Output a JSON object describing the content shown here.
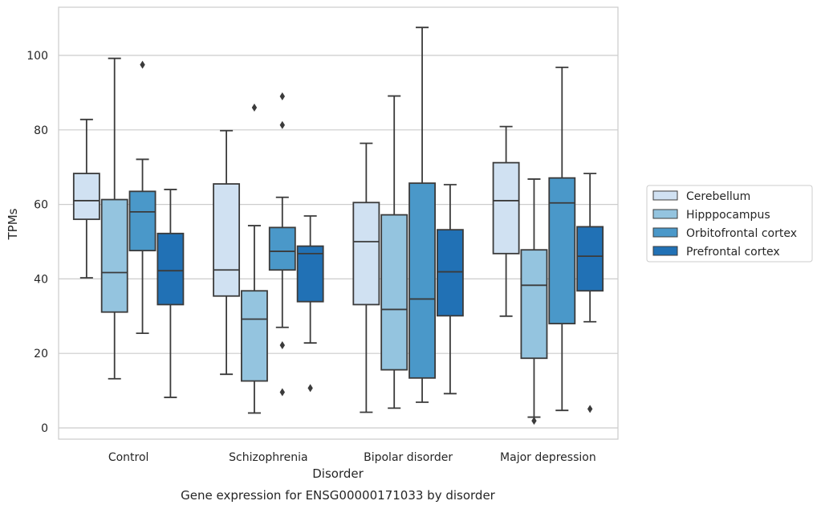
{
  "chart_data": {
    "type": "box",
    "title": "Gene expression for ENSG00000171033 by disorder",
    "xlabel": "Disorder",
    "ylabel": "TPMs",
    "ylim": [
      -3,
      113
    ],
    "yticks": [
      0,
      20,
      40,
      60,
      80,
      100
    ],
    "grid": "horizontal",
    "legend_position": "right",
    "categories": [
      "Control",
      "Schizophrenia",
      "Bipolar disorder",
      "Major depression"
    ],
    "series": [
      {
        "name": "Cerebellum",
        "color": "#d0e1f2",
        "boxes": [
          {
            "min": 40.3,
            "q1": 56.0,
            "median": 61.0,
            "q3": 68.3,
            "max": 82.8,
            "outliers": []
          },
          {
            "min": 14.4,
            "q1": 35.4,
            "median": 42.4,
            "q3": 65.5,
            "max": 79.8,
            "outliers": []
          },
          {
            "min": 4.2,
            "q1": 33.1,
            "median": 50.0,
            "q3": 60.5,
            "max": 76.4,
            "outliers": []
          },
          {
            "min": 30.0,
            "q1": 46.8,
            "median": 61.0,
            "q3": 71.2,
            "max": 80.9,
            "outliers": []
          }
        ]
      },
      {
        "name": "Hipppocampus",
        "color": "#94c4df",
        "boxes": [
          {
            "min": 13.2,
            "q1": 31.1,
            "median": 41.7,
            "q3": 61.3,
            "max": 99.2,
            "outliers": []
          },
          {
            "min": 4.0,
            "q1": 12.6,
            "median": 29.2,
            "q3": 36.8,
            "max": 54.3,
            "outliers": [
              86.0
            ]
          },
          {
            "min": 5.3,
            "q1": 15.6,
            "median": 31.8,
            "q3": 57.2,
            "max": 89.1,
            "outliers": []
          },
          {
            "min": 2.9,
            "q1": 18.7,
            "median": 38.3,
            "q3": 47.8,
            "max": 66.8,
            "outliers": [
              1.9
            ]
          }
        ]
      },
      {
        "name": "Orbitofrontal cortex",
        "color": "#4a98c9",
        "boxes": [
          {
            "min": 25.4,
            "q1": 47.6,
            "median": 58.0,
            "q3": 63.5,
            "max": 72.1,
            "outliers": [
              97.5
            ]
          },
          {
            "min": 27.0,
            "q1": 42.4,
            "median": 47.4,
            "q3": 53.8,
            "max": 61.9,
            "outliers": [
              89.0,
              81.3,
              22.2,
              9.6
            ]
          },
          {
            "min": 6.9,
            "q1": 13.4,
            "median": 34.6,
            "q3": 65.7,
            "max": 107.5,
            "outliers": []
          },
          {
            "min": 4.7,
            "q1": 28.0,
            "median": 60.4,
            "q3": 67.1,
            "max": 96.8,
            "outliers": []
          }
        ]
      },
      {
        "name": "Prefrontal cortex",
        "color": "#2171b5",
        "boxes": [
          {
            "min": 8.2,
            "q1": 33.1,
            "median": 42.2,
            "q3": 52.2,
            "max": 64.0,
            "outliers": []
          },
          {
            "min": 22.8,
            "q1": 33.9,
            "median": 46.8,
            "q3": 48.8,
            "max": 56.9,
            "outliers": [
              10.7
            ]
          },
          {
            "min": 9.2,
            "q1": 30.1,
            "median": 41.9,
            "q3": 53.2,
            "max": 65.3,
            "outliers": []
          },
          {
            "min": 28.5,
            "q1": 36.8,
            "median": 46.1,
            "q3": 54.0,
            "max": 68.3,
            "outliers": [
              5.1
            ]
          }
        ]
      }
    ]
  }
}
